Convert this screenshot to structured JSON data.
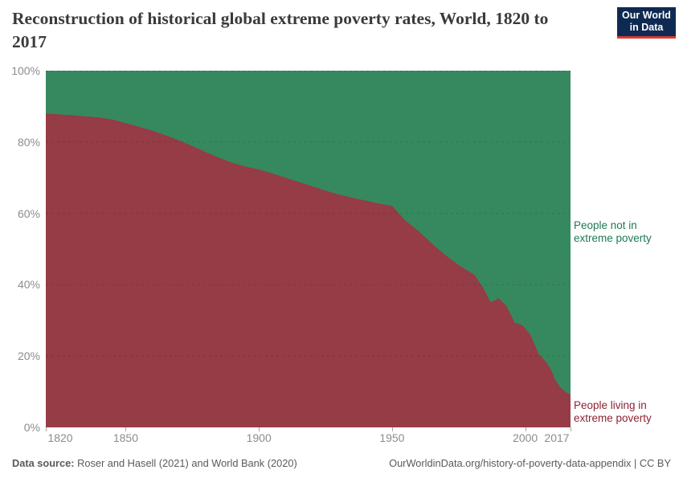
{
  "header": {
    "title": "Reconstruction of historical global extreme poverty rates, World, 1820 to 2017",
    "logo": {
      "line1": "Our World",
      "line2": "in Data",
      "bg_color": "#0f2a52",
      "accent_color": "#d73a34"
    }
  },
  "chart_data": {
    "type": "area",
    "stacked": true,
    "title": "Reconstruction of historical global extreme poverty rates, World, 1820 to 2017",
    "xlabel": "",
    "ylabel": "",
    "xlim": [
      1820,
      2017
    ],
    "ylim": [
      0,
      100
    ],
    "grid": "horizontal-dashed",
    "legend_position": "right-annotations",
    "x": [
      1820,
      1830,
      1840,
      1845,
      1850,
      1855,
      1860,
      1865,
      1870,
      1875,
      1880,
      1885,
      1890,
      1895,
      1900,
      1905,
      1910,
      1915,
      1920,
      1925,
      1930,
      1935,
      1940,
      1945,
      1950,
      1955,
      1960,
      1965,
      1970,
      1975,
      1980,
      1981,
      1984,
      1987,
      1990,
      1993,
      1996,
      1999,
      2002,
      2005,
      2008,
      2010,
      2011,
      2013,
      2015,
      2017
    ],
    "series": [
      {
        "name": "People living in extreme poverty",
        "color": "#953c46",
        "label_color": "#8b2433",
        "values": [
          88.0,
          87.5,
          86.9,
          86.3,
          85.3,
          84.3,
          83.2,
          81.9,
          80.5,
          78.9,
          77.2,
          75.6,
          74.2,
          73.1,
          72.3,
          71.2,
          70.0,
          68.8,
          67.6,
          66.4,
          65.3,
          64.4,
          63.6,
          62.8,
          62.1,
          58.0,
          55.0,
          51.5,
          48.3,
          45.5,
          43.2,
          42.7,
          39.4,
          35.1,
          36.2,
          34.0,
          29.4,
          28.6,
          25.9,
          20.7,
          18.2,
          15.7,
          13.7,
          11.4,
          10.0,
          9.2
        ]
      },
      {
        "name": "People not in extreme poverty",
        "color": "#36895e",
        "label_color": "#1d7a53",
        "values": [
          12.0,
          12.5,
          13.1,
          13.7,
          14.7,
          15.7,
          16.8,
          18.1,
          19.5,
          21.1,
          22.8,
          24.4,
          25.8,
          26.9,
          27.7,
          28.8,
          30.0,
          31.2,
          32.4,
          33.6,
          34.7,
          35.6,
          36.4,
          37.2,
          37.9,
          42.0,
          45.0,
          48.5,
          51.7,
          54.5,
          56.8,
          57.3,
          60.6,
          64.9,
          63.8,
          66.0,
          70.6,
          71.4,
          74.1,
          79.3,
          81.8,
          84.3,
          86.3,
          88.6,
          90.0,
          90.8
        ]
      }
    ],
    "yticks": [
      {
        "value": 0,
        "label": "0%"
      },
      {
        "value": 20,
        "label": "20%"
      },
      {
        "value": 40,
        "label": "40%"
      },
      {
        "value": 60,
        "label": "60%"
      },
      {
        "value": 80,
        "label": "80%"
      },
      {
        "value": 100,
        "label": "100%"
      }
    ],
    "xticks": [
      {
        "value": 1820,
        "label": "1820"
      },
      {
        "value": 1850,
        "label": "1850"
      },
      {
        "value": 1900,
        "label": "1900"
      },
      {
        "value": 1950,
        "label": "1950"
      },
      {
        "value": 2000,
        "label": "2000"
      },
      {
        "value": 2017,
        "label": "2017"
      }
    ]
  },
  "footer": {
    "source_label": "Data source:",
    "source_text": " Roser and Hasell (2021) and World Bank (2020)",
    "link_text": "OurWorldinData.org/history-of-poverty-data-appendix | CC BY"
  }
}
